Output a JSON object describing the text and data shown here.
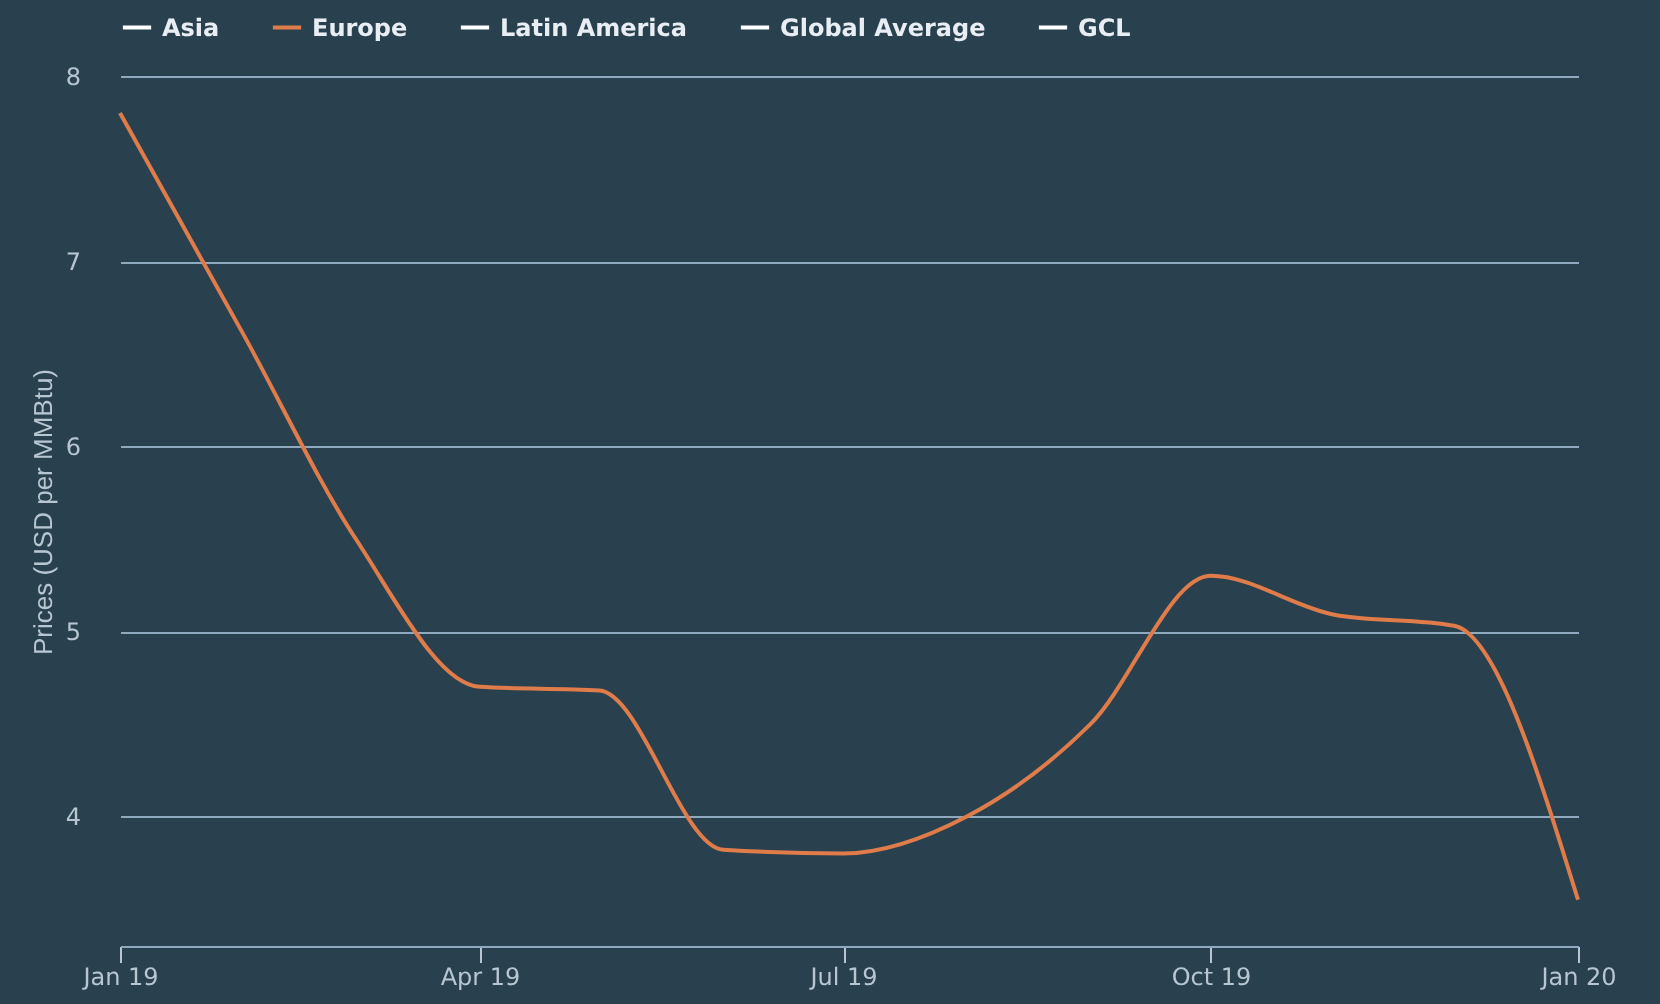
{
  "chart_data": {
    "type": "line",
    "ylabel": "Prices (USD per MMBtu)",
    "x": [
      "2019-01",
      "2019-02",
      "2019-03",
      "2019-04",
      "2019-05",
      "2019-06",
      "2019-07",
      "2019-08",
      "2019-09",
      "2019-10",
      "2019-11",
      "2019-12",
      "2020-01"
    ],
    "series": [
      {
        "name": "Asia",
        "color": "#ffffff",
        "values": [
          null,
          null,
          null,
          null,
          null,
          null,
          null,
          null,
          null,
          null,
          null,
          null,
          null
        ]
      },
      {
        "name": "Europe",
        "color": "#e07b4a",
        "values": [
          7.8,
          6.6,
          5.5,
          4.7,
          4.68,
          3.82,
          3.8,
          4.0,
          4.5,
          5.3,
          5.09,
          5.03,
          3.55
        ]
      },
      {
        "name": "Latin America",
        "color": "#ffffff",
        "values": [
          null,
          null,
          null,
          null,
          null,
          null,
          null,
          null,
          null,
          null,
          null,
          null,
          null
        ]
      },
      {
        "name": "Global Average",
        "color": "#ffffff",
        "values": [
          null,
          null,
          null,
          null,
          null,
          null,
          null,
          null,
          null,
          null,
          null,
          null,
          null
        ]
      },
      {
        "name": "GCL",
        "color": "#ffffff",
        "values": [
          null,
          null,
          null,
          null,
          null,
          null,
          null,
          null,
          null,
          null,
          null,
          null,
          null
        ]
      }
    ],
    "xlim": [
      "2019-01",
      "2020-01"
    ],
    "xticks": [
      {
        "value": "2019-01",
        "label": "Jan 19"
      },
      {
        "value": "2019-04",
        "label": "Apr 19"
      },
      {
        "value": "2019-07",
        "label": "Jul 19"
      },
      {
        "value": "2019-10",
        "label": "Oct 19"
      },
      {
        "value": "2020-01",
        "label": "Jan 20"
      }
    ],
    "ylim": [
      3.3,
      8
    ],
    "yticks": [
      4,
      5,
      6,
      7,
      8
    ],
    "grid": "y",
    "legend": "top",
    "marker": "none",
    "line_style": "solid"
  }
}
